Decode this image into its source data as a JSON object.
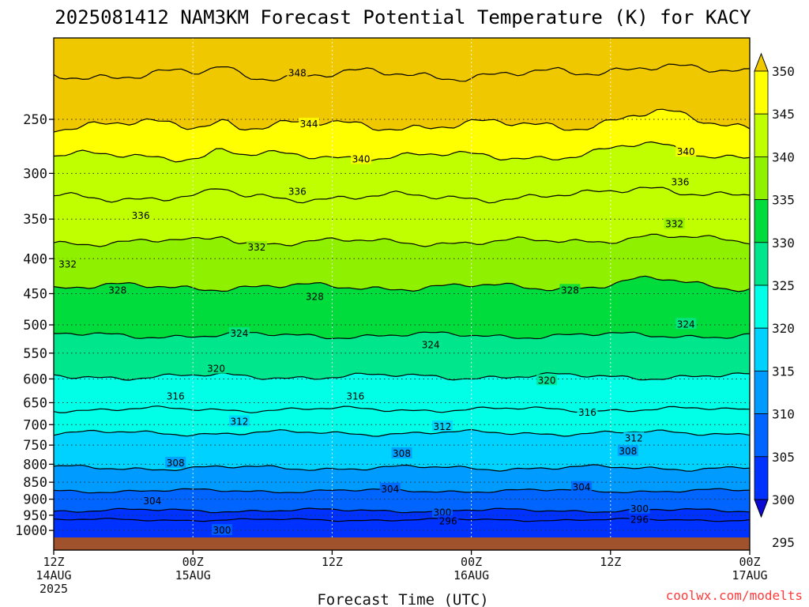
{
  "title": "2025081412 NAM3KM Forecast Potential Temperature (K) for KACY",
  "credit": "coolwx.com/modelts",
  "chart_data": {
    "type": "heatmap",
    "title": "2025081412 NAM3KM Forecast Potential Temperature (K) for KACY",
    "xlabel": "Forecast Time (UTC)",
    "ylabel": "",
    "y_scale": "log",
    "y_reversed": true,
    "y_ticks": [
      250,
      300,
      350,
      400,
      450,
      500,
      550,
      600,
      650,
      700,
      750,
      800,
      850,
      900,
      950,
      1000
    ],
    "x_ticks": [
      {
        "time": "12Z",
        "date": "14AUG",
        "year": "2025"
      },
      {
        "time": "00Z",
        "date": "15AUG",
        "year": ""
      },
      {
        "time": "12Z",
        "date": "",
        "year": ""
      },
      {
        "time": "00Z",
        "date": "16AUG",
        "year": ""
      },
      {
        "time": "12Z",
        "date": "",
        "year": ""
      },
      {
        "time": "00Z",
        "date": "17AUG",
        "year": ""
      }
    ],
    "forecast_hours": [
      0,
      12,
      24,
      36,
      48,
      60
    ],
    "colorbar": {
      "labels": [
        350,
        345,
        340,
        335,
        330,
        325,
        320,
        315,
        310,
        305,
        300,
        295
      ],
      "bins": [
        {
          "min": 345,
          "color": "#f0c800"
        },
        {
          "min": 340,
          "color": "#ffff00"
        },
        {
          "min": 335,
          "color": "#bfff00"
        },
        {
          "min": 330,
          "color": "#8ff000"
        },
        {
          "min": 325,
          "color": "#00dc3c"
        },
        {
          "min": 320,
          "color": "#00e68c"
        },
        {
          "min": 315,
          "color": "#00ffe6"
        },
        {
          "min": 310,
          "color": "#00d2ff"
        },
        {
          "min": 305,
          "color": "#009bff"
        },
        {
          "min": 300,
          "color": "#0064ff"
        },
        {
          "min": 295,
          "color": "#0032ff"
        },
        {
          "max": 295,
          "color": "#0a0ad2"
        }
      ]
    },
    "ground_color": "#a0522d",
    "contours": [
      {
        "value": 348,
        "pressure": 215
      },
      {
        "value": 344,
        "pressure": 255
      },
      {
        "value": 340,
        "pressure": 283
      },
      {
        "value": 336,
        "pressure": 325
      },
      {
        "value": 332,
        "pressure": 378
      },
      {
        "value": 328,
        "pressure": 440
      },
      {
        "value": 324,
        "pressure": 518
      },
      {
        "value": 320,
        "pressure": 595
      },
      {
        "value": 316,
        "pressure": 665
      },
      {
        "value": 312,
        "pressure": 720
      },
      {
        "value": 308,
        "pressure": 810
      },
      {
        "value": 304,
        "pressure": 875
      },
      {
        "value": 300,
        "pressure": 935
      },
      {
        "value": 296,
        "pressure": 965
      }
    ],
    "contour_labels": [
      {
        "text": "348",
        "hour": 21,
        "pressure": 214
      },
      {
        "text": "344",
        "hour": 22,
        "pressure": 254
      },
      {
        "text": "340",
        "hour": 26.5,
        "pressure": 286
      },
      {
        "text": "340",
        "hour": 54.5,
        "pressure": 279
      },
      {
        "text": "336",
        "hour": 7.5,
        "pressure": 346
      },
      {
        "text": "336",
        "hour": 21,
        "pressure": 319
      },
      {
        "text": "336",
        "hour": 54,
        "pressure": 309
      },
      {
        "text": "332",
        "hour": 1.2,
        "pressure": 408
      },
      {
        "text": "332",
        "hour": 17.5,
        "pressure": 385
      },
      {
        "text": "332",
        "hour": 53.5,
        "pressure": 356
      },
      {
        "text": "328",
        "hour": 5.5,
        "pressure": 445
      },
      {
        "text": "328",
        "hour": 22.5,
        "pressure": 455
      },
      {
        "text": "328",
        "hour": 44.5,
        "pressure": 445
      },
      {
        "text": "324",
        "hour": 16,
        "pressure": 515
      },
      {
        "text": "324",
        "hour": 32.5,
        "pressure": 535
      },
      {
        "text": "324",
        "hour": 54.5,
        "pressure": 499
      },
      {
        "text": "320",
        "hour": 14,
        "pressure": 580
      },
      {
        "text": "320",
        "hour": 42.5,
        "pressure": 603
      },
      {
        "text": "316",
        "hour": 10.5,
        "pressure": 636
      },
      {
        "text": "316",
        "hour": 26,
        "pressure": 636
      },
      {
        "text": "316",
        "hour": 46,
        "pressure": 672
      },
      {
        "text": "312",
        "hour": 16,
        "pressure": 693
      },
      {
        "text": "312",
        "hour": 33.5,
        "pressure": 705
      },
      {
        "text": "312",
        "hour": 50,
        "pressure": 733
      },
      {
        "text": "308",
        "hour": 10.5,
        "pressure": 797
      },
      {
        "text": "308",
        "hour": 30,
        "pressure": 772
      },
      {
        "text": "308",
        "hour": 49.5,
        "pressure": 766
      },
      {
        "text": "304",
        "hour": 8.5,
        "pressure": 906
      },
      {
        "text": "304",
        "hour": 29,
        "pressure": 870
      },
      {
        "text": "304",
        "hour": 45.5,
        "pressure": 865
      },
      {
        "text": "300",
        "hour": 14.5,
        "pressure": 1000
      },
      {
        "text": "300",
        "hour": 33.5,
        "pressure": 942
      },
      {
        "text": "300",
        "hour": 50.5,
        "pressure": 930
      },
      {
        "text": "296",
        "hour": 34,
        "pressure": 970
      },
      {
        "text": "296",
        "hour": 50.5,
        "pressure": 965
      }
    ]
  }
}
